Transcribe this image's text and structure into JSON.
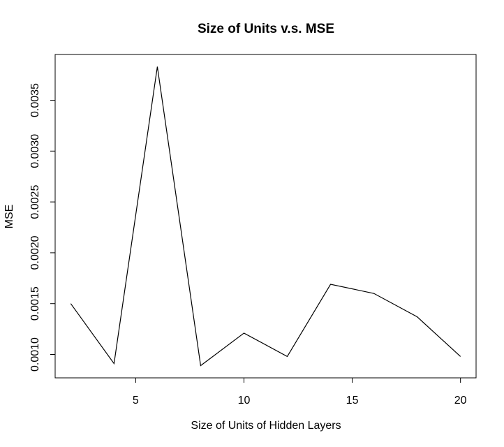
{
  "chart_data": {
    "type": "line",
    "title": "Size of Units v.s. MSE",
    "xlabel": "Size of Units of Hidden Layers",
    "ylabel": "MSE",
    "x": [
      2,
      4,
      6,
      8,
      10,
      12,
      14,
      16,
      18,
      20
    ],
    "series": [
      {
        "values": [
          0.0015,
          0.00091,
          0.00383,
          0.00089,
          0.00121,
          0.00098,
          0.00169,
          0.0016,
          0.00137,
          0.00098
        ]
      }
    ],
    "xlim": [
      1.28,
      20.72
    ],
    "ylim": [
      0.00077,
      0.00395
    ],
    "xticks": [
      5,
      10,
      15,
      20
    ],
    "yticks": [
      0.001,
      0.0015,
      0.002,
      0.0025,
      0.003,
      0.0035
    ],
    "xtick_labels": [
      "5",
      "10",
      "15",
      "20"
    ],
    "ytick_labels": [
      "0.0010",
      "0.0015",
      "0.0020",
      "0.0025",
      "0.0030",
      "0.0035"
    ],
    "grid": false,
    "line_color": "#000000"
  }
}
